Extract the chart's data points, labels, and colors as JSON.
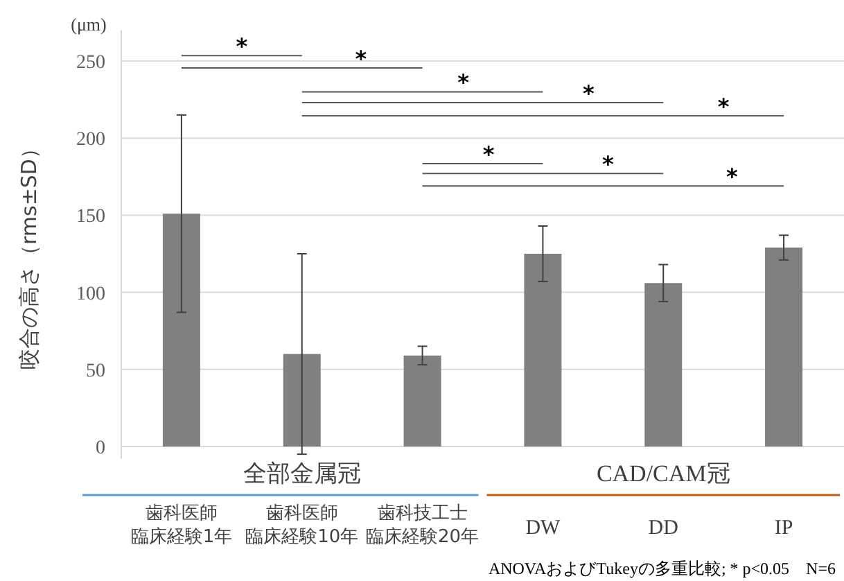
{
  "chart_data": {
    "type": "bar",
    "ylabel": "咬合の高さ（rms±SD）",
    "categories": [
      "歯科医師臨床経験1年",
      "歯科医師臨床経験10年",
      "歯科技工士臨床経験20年",
      "DW",
      "DD",
      "IP"
    ],
    "values": [
      151,
      60,
      59,
      125,
      106,
      129
    ],
    "errors": [
      64,
      65,
      6,
      18,
      12,
      8
    ],
    "color": "#808080",
    "ylim": [
      -8,
      270
    ],
    "yticks": [
      0,
      50,
      100,
      150,
      200,
      250
    ],
    "grid": "y",
    "annotations": [
      "(μm)",
      "*",
      "*",
      "*",
      "*",
      "*",
      "*",
      "*",
      "*",
      "全部金属冠",
      "CAD/CAM冠",
      "ANOVAおよびTukeyの多重比較; * p<0.05　N=6"
    ]
  }
}
